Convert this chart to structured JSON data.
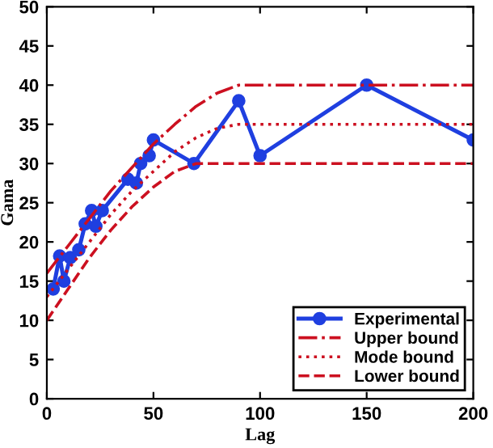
{
  "chart_data": {
    "type": "line",
    "xlabel": "Lag",
    "ylabel": "Gama",
    "xlim": [
      0,
      200
    ],
    "ylim": [
      0,
      50
    ],
    "xticks": [
      0,
      50,
      100,
      150,
      200
    ],
    "yticks": [
      0,
      5,
      10,
      15,
      20,
      25,
      30,
      35,
      40,
      45,
      50
    ],
    "grid": false,
    "legend": "bottom right",
    "series": [
      {
        "name": "Experimental",
        "color": "#1f3fe0",
        "marker": "circle",
        "line_style": "solid",
        "x": [
          3,
          6,
          8,
          11,
          15,
          18,
          21,
          23,
          26,
          38,
          42,
          44,
          48,
          50,
          69,
          90,
          100,
          150,
          200
        ],
        "values": [
          14,
          18.2,
          15,
          18,
          19,
          22.3,
          24,
          22,
          24,
          28,
          27.5,
          30,
          31,
          33,
          30,
          38,
          31,
          40,
          33
        ]
      },
      {
        "name": "Upper bound",
        "color": "#cc1020",
        "marker": "none",
        "line_style": "dashdot",
        "x": [
          0,
          10,
          20,
          30,
          40,
          50,
          60,
          70,
          80,
          90,
          200
        ],
        "values": [
          16,
          19.5,
          23,
          26.5,
          29.5,
          32.5,
          35,
          37.3,
          39,
          40,
          40
        ]
      },
      {
        "name": "Mode bound",
        "color": "#cc1020",
        "marker": "none",
        "line_style": "dotted",
        "x": [
          0,
          10,
          20,
          30,
          40,
          50,
          60,
          70,
          80,
          90,
          200
        ],
        "values": [
          13,
          16.5,
          20,
          23.5,
          26.5,
          29,
          31.5,
          33.3,
          34.5,
          35,
          35
        ]
      },
      {
        "name": "Lower bound",
        "color": "#cc1020",
        "marker": "none",
        "line_style": "dashed",
        "x": [
          0,
          10,
          20,
          30,
          40,
          50,
          60,
          70,
          200
        ],
        "values": [
          10,
          14,
          18,
          21.5,
          24.5,
          27,
          29,
          30,
          30
        ]
      }
    ]
  }
}
